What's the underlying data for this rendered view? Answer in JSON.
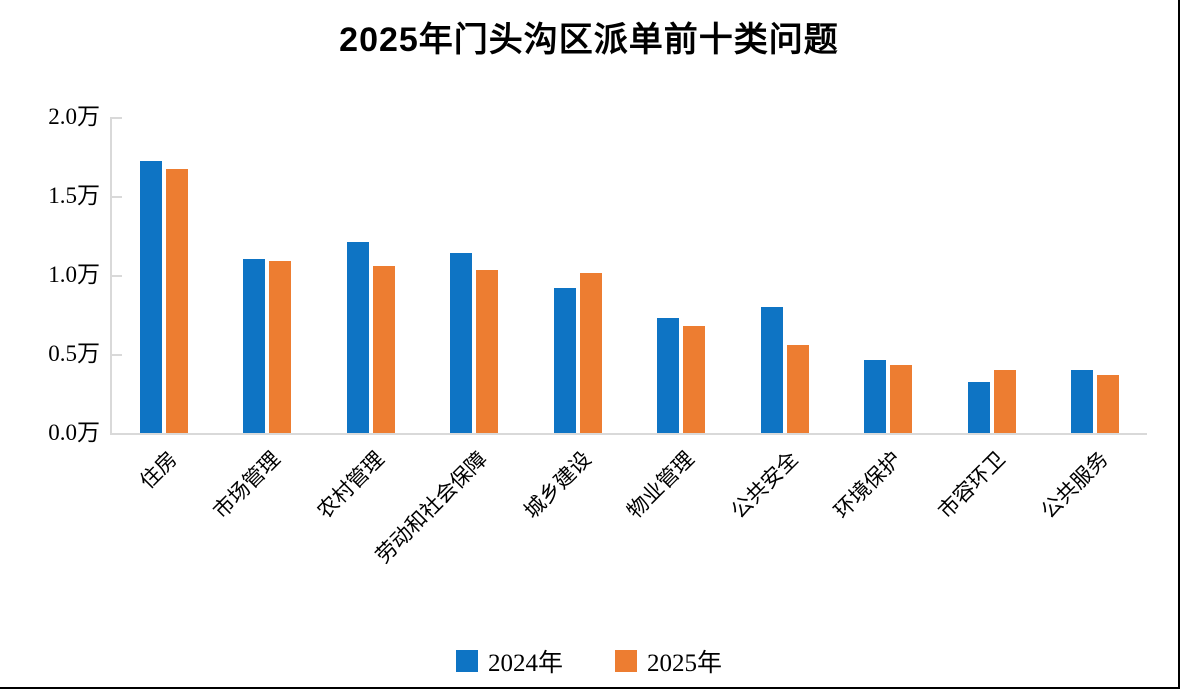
{
  "title": "2025年门头沟区派单前十类问题",
  "colors": {
    "series_2024": "#0E74C4",
    "series_2025": "#ED7D31",
    "axis_line": "#D9D9D9"
  },
  "y_axis": {
    "ticks": [
      "2.0万",
      "1.5万",
      "1.0万",
      "0.5万",
      "0.0万"
    ],
    "unit": "万"
  },
  "legend": {
    "items": [
      "2024年",
      "2025年"
    ]
  },
  "chart_data": {
    "type": "bar",
    "title": "2025年门头沟区派单前十类问题",
    "categories": [
      "住房",
      "市场管理",
      "农村管理",
      "劳动和社会保障",
      "城乡建设",
      "物业管理",
      "公共安全",
      "环境保护",
      "市容环卫",
      "公共服务"
    ],
    "series": [
      {
        "name": "2024年",
        "color": "#0E74C4",
        "values": [
          1.72,
          1.1,
          1.21,
          1.14,
          0.92,
          0.73,
          0.8,
          0.46,
          0.32,
          0.4
        ]
      },
      {
        "name": "2025年",
        "color": "#ED7D31",
        "values": [
          1.67,
          1.09,
          1.06,
          1.03,
          1.01,
          0.68,
          0.56,
          0.43,
          0.4,
          0.37
        ]
      }
    ],
    "xlabel": "",
    "ylabel": "",
    "unit": "万",
    "ylim": [
      0,
      2.0
    ],
    "y_tick_step": 0.5,
    "grid": false,
    "legend_position": "bottom",
    "x_tick_rotation_deg": 45
  }
}
